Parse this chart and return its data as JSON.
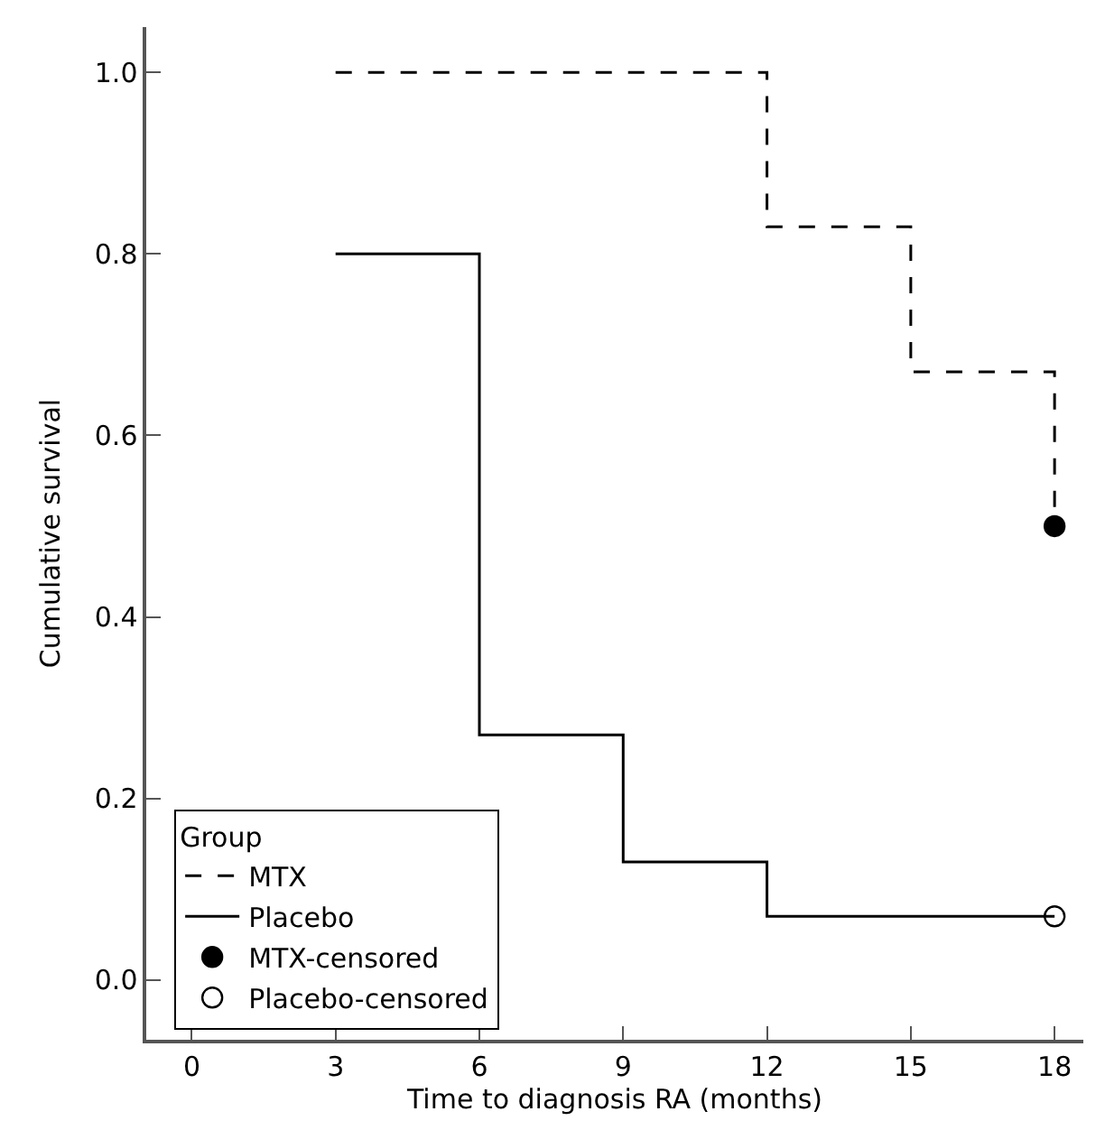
{
  "chart_data": {
    "type": "step",
    "xlabel": "Time to diagnosis RA (months)",
    "ylabel": "Cumulative survival",
    "legend_title": "Group",
    "series": [
      {
        "name": "MTX",
        "color": "#000000",
        "line_style": "dashed",
        "x": [
          3,
          12,
          15,
          18
        ],
        "values": [
          1.0,
          0.83,
          0.67,
          0.5
        ]
      },
      {
        "name": "Placebo",
        "color": "#000000",
        "line_style": "solid",
        "x": [
          3,
          6,
          9,
          12,
          18
        ],
        "values": [
          0.8,
          0.27,
          0.13,
          0.07,
          0.07
        ]
      },
      {
        "name": "MTX-censored",
        "type": "scatter",
        "marker": "circle",
        "color": "#000000",
        "x": [
          18
        ],
        "values": [
          0.5
        ]
      },
      {
        "name": "Placebo-censored",
        "type": "scatter",
        "marker": "circle-open",
        "color": "#000000",
        "x": [
          18
        ],
        "values": [
          0.07
        ]
      }
    ],
    "xlim": [
      -0.95,
      18.6
    ],
    "ylim": [
      -0.066,
      1.05
    ],
    "xticks": [
      0,
      3,
      6,
      9,
      12,
      15,
      18
    ],
    "yticks": [
      {
        "value": 0,
        "label": "0.0"
      },
      {
        "value": 0.2,
        "label": "0.2"
      },
      {
        "value": 0.4,
        "label": "0.4"
      },
      {
        "value": 0.6,
        "label": "0.6"
      },
      {
        "value": 0.8,
        "label": "0.8"
      },
      {
        "value": 1.0,
        "label": "1.0"
      }
    ],
    "legend": "bottom left"
  }
}
